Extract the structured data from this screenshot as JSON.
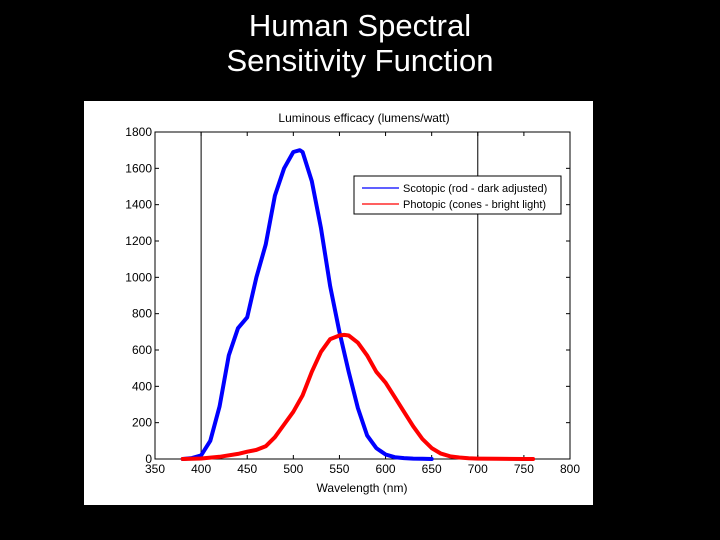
{
  "slide": {
    "title_line1": "Human Spectral",
    "title_line2": "Sensitivity Function"
  },
  "colors": {
    "background": "#000000",
    "panel": "#ffffff",
    "scotopic": "#0000ff",
    "photopic": "#ff0000"
  },
  "chart_data": {
    "type": "line",
    "title": "Luminous efficacy (lumens/watt)",
    "xlabel": "Wavelength (nm)",
    "ylabel": "",
    "xlim": [
      350,
      800
    ],
    "ylim": [
      0,
      1800
    ],
    "xticks": [
      350,
      400,
      450,
      500,
      550,
      600,
      650,
      700,
      750,
      800
    ],
    "yticks": [
      0,
      200,
      400,
      600,
      800,
      1000,
      1200,
      1400,
      1600,
      1800
    ],
    "grid": false,
    "reference_lines_x": [
      400,
      700
    ],
    "legend_position": "top-right",
    "series": [
      {
        "name": "Scotopic (rod - dark adjusted)",
        "color": "#0000ff",
        "x": [
          380,
          390,
          400,
          410,
          420,
          430,
          440,
          450,
          460,
          470,
          480,
          490,
          500,
          507,
          510,
          520,
          530,
          540,
          550,
          560,
          570,
          580,
          590,
          600,
          610,
          620,
          630,
          640,
          650
        ],
        "y": [
          0,
          5,
          20,
          100,
          290,
          570,
          720,
          780,
          1000,
          1180,
          1450,
          1600,
          1690,
          1700,
          1690,
          1530,
          1270,
          950,
          700,
          480,
          280,
          130,
          60,
          25,
          10,
          5,
          2,
          1,
          0
        ]
      },
      {
        "name": "Photopic (cones - bright light)",
        "color": "#ff0000",
        "x": [
          380,
          400,
          420,
          440,
          450,
          460,
          470,
          480,
          490,
          500,
          510,
          520,
          530,
          540,
          550,
          555,
          560,
          570,
          580,
          590,
          600,
          610,
          620,
          630,
          640,
          650,
          660,
          670,
          680,
          690,
          700,
          720,
          750,
          760
        ],
        "y": [
          0,
          3,
          12,
          28,
          40,
          50,
          70,
          120,
          190,
          260,
          350,
          480,
          590,
          660,
          680,
          683,
          680,
          640,
          570,
          480,
          420,
          340,
          260,
          180,
          110,
          60,
          30,
          15,
          8,
          4,
          2,
          1,
          0,
          0
        ]
      }
    ]
  }
}
